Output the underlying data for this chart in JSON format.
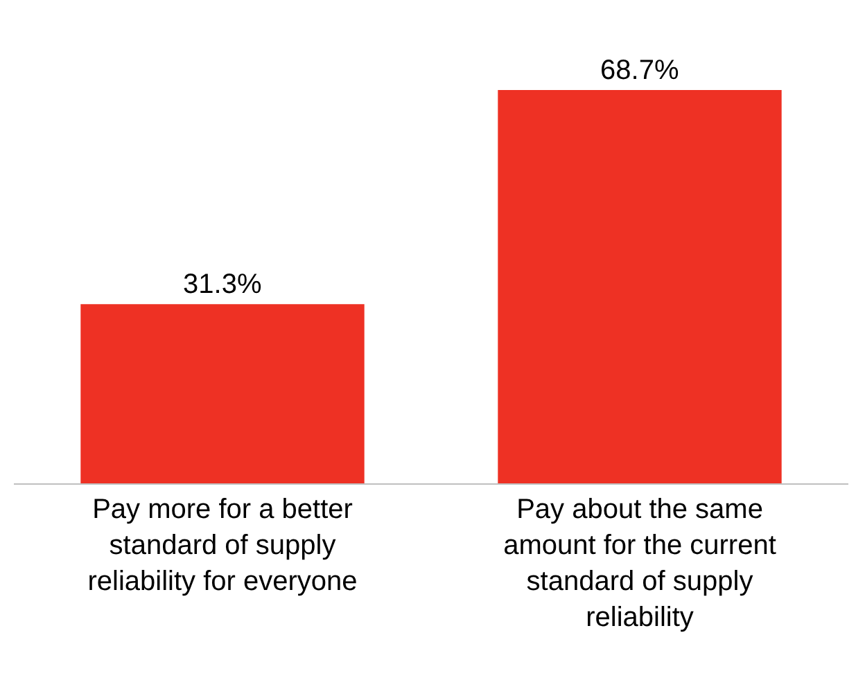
{
  "chart_data": {
    "type": "bar",
    "categories": [
      "Pay more for a better standard of supply reliability for everyone",
      "Pay about the same amount for the current standard of supply reliability"
    ],
    "values": [
      31.3,
      68.7
    ],
    "color": "#ee3124",
    "data_labels": true,
    "value_labels": [
      "31.3%",
      "68.7%"
    ]
  }
}
